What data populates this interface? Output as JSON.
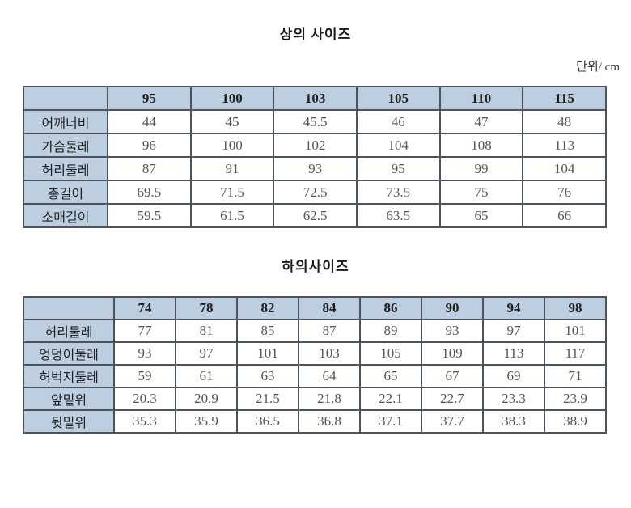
{
  "page": {
    "unit_label": "단위/ cm"
  },
  "colors": {
    "header_bg": "#bccee0",
    "border": "#4b545e",
    "label_text": "#1f1f1f",
    "data_text": "#555555"
  },
  "chart_data": [
    {
      "type": "table",
      "title": "상의 사이즈",
      "corner_label": "",
      "columns": [
        95,
        100,
        103,
        105,
        110,
        115
      ],
      "rows": [
        {
          "label": "어깨너비",
          "values": [
            44,
            45,
            45.5,
            46,
            47,
            48
          ]
        },
        {
          "label": "가슴둘레",
          "values": [
            96,
            100,
            102,
            104,
            108,
            113
          ]
        },
        {
          "label": "허리둘레",
          "values": [
            87,
            91,
            93,
            95,
            99,
            104
          ]
        },
        {
          "label": "총길이",
          "values": [
            69.5,
            71.5,
            72.5,
            73.5,
            75,
            76
          ]
        },
        {
          "label": "소매길이",
          "values": [
            59.5,
            61.5,
            62.5,
            63.5,
            65,
            66
          ]
        }
      ]
    },
    {
      "type": "table",
      "title": "하의사이즈",
      "corner_label": "",
      "columns": [
        74,
        78,
        82,
        84,
        86,
        90,
        94,
        98
      ],
      "rows": [
        {
          "label": "허리둘레",
          "values": [
            77,
            81,
            85,
            87,
            89,
            93,
            97,
            101
          ]
        },
        {
          "label": "엉덩이둘레",
          "values": [
            93,
            97,
            101,
            103,
            105,
            109,
            113,
            117
          ]
        },
        {
          "label": "허벅지둘레",
          "values": [
            59,
            61,
            63,
            64,
            65,
            67,
            69,
            71
          ]
        },
        {
          "label": "앞밑위",
          "values": [
            20.3,
            20.9,
            21.5,
            21.8,
            22.1,
            22.7,
            23.3,
            23.9
          ]
        },
        {
          "label": "뒷밑위",
          "values": [
            35.3,
            35.9,
            36.5,
            36.8,
            37.1,
            37.7,
            38.3,
            38.9
          ]
        }
      ]
    }
  ]
}
